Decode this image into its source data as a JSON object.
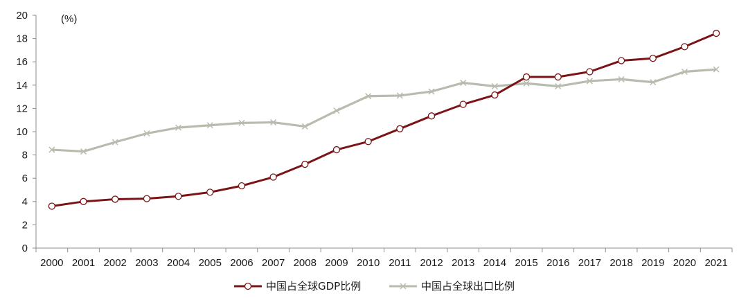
{
  "chart_data": {
    "type": "line",
    "unit_label": "(%)",
    "categories": [
      "2000",
      "2001",
      "2002",
      "2003",
      "2004",
      "2005",
      "2006",
      "2007",
      "2008",
      "2009",
      "2010",
      "2011",
      "2012",
      "2013",
      "2014",
      "2015",
      "2016",
      "2017",
      "2018",
      "2019",
      "2020",
      "2021"
    ],
    "ylim": [
      0,
      20
    ],
    "yticks": [
      0,
      2,
      4,
      6,
      8,
      10,
      12,
      14,
      16,
      18,
      20
    ],
    "grid": false,
    "legend_position": "bottom",
    "series": [
      {
        "name": "中国占全球GDP比例",
        "color": "#7a1416",
        "marker": "circle",
        "values": [
          3.6,
          4.0,
          4.2,
          4.25,
          4.45,
          4.8,
          5.35,
          6.1,
          7.2,
          8.45,
          9.15,
          10.25,
          11.35,
          12.35,
          13.15,
          14.7,
          14.7,
          15.15,
          16.1,
          16.3,
          17.3,
          18.45
        ]
      },
      {
        "name": "中国占全球出口比例",
        "color": "#b8bcae",
        "marker": "cross",
        "values": [
          8.45,
          8.3,
          9.1,
          9.85,
          10.35,
          10.55,
          10.75,
          10.8,
          10.45,
          11.8,
          13.05,
          13.1,
          13.45,
          14.2,
          13.9,
          14.15,
          13.9,
          14.35,
          14.5,
          14.25,
          15.15,
          15.35
        ]
      }
    ]
  }
}
